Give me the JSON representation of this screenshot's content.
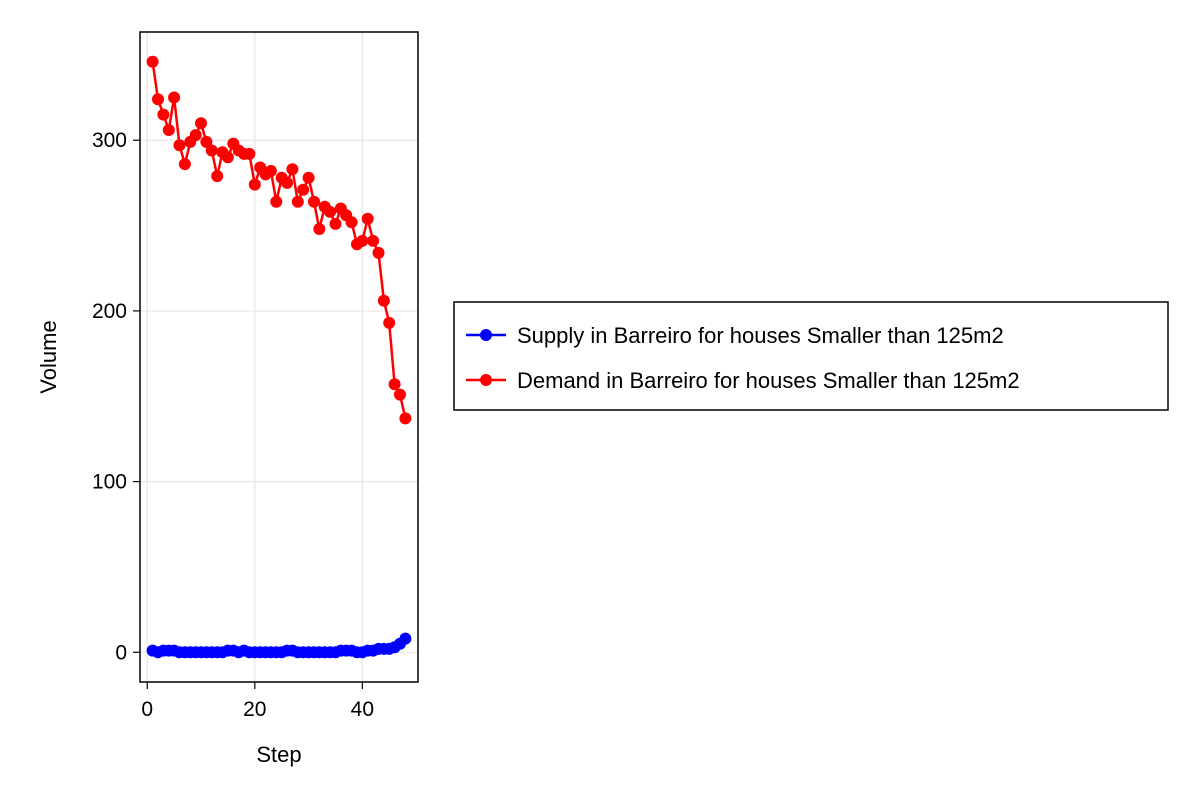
{
  "chart_data": {
    "type": "line",
    "title": "",
    "xlabel": "Step",
    "ylabel": "Volume",
    "xlim": [
      -1.35,
      50.35
    ],
    "ylim": [
      -17.4,
      363.4
    ],
    "xticks": [
      0,
      20,
      40
    ],
    "yticks": [
      0,
      100,
      200,
      300
    ],
    "xtick_labels": [
      "0",
      "20",
      "40"
    ],
    "ytick_labels": [
      "0",
      "100",
      "200",
      "300"
    ],
    "grid": true,
    "legend_position": "right",
    "series": [
      {
        "name": "Supply in Barreiro for houses Smaller than 125m2",
        "color": "#0000ff",
        "x": [
          1,
          2,
          3,
          4,
          5,
          6,
          7,
          8,
          9,
          10,
          11,
          12,
          13,
          14,
          15,
          16,
          17,
          18,
          19,
          20,
          21,
          22,
          23,
          24,
          25,
          26,
          27,
          28,
          29,
          30,
          31,
          32,
          33,
          34,
          35,
          36,
          37,
          38,
          39,
          40,
          41,
          42,
          43,
          44,
          45,
          46,
          47,
          48
        ],
        "values": [
          1,
          0,
          1,
          1,
          1,
          0,
          0,
          0,
          0,
          0,
          0,
          0,
          0,
          0,
          1,
          1,
          0,
          1,
          0,
          0,
          0,
          0,
          0,
          0,
          0,
          1,
          1,
          0,
          0,
          0,
          0,
          0,
          0,
          0,
          0,
          1,
          1,
          1,
          0,
          0,
          1,
          1,
          2,
          2,
          2,
          3,
          5,
          8
        ]
      },
      {
        "name": "Demand in Barreiro for houses Smaller than 125m2",
        "color": "#ff0000",
        "x": [
          1,
          2,
          3,
          4,
          5,
          6,
          7,
          8,
          9,
          10,
          11,
          12,
          13,
          14,
          15,
          16,
          17,
          18,
          19,
          20,
          21,
          22,
          23,
          24,
          25,
          26,
          27,
          28,
          29,
          30,
          31,
          32,
          33,
          34,
          35,
          36,
          37,
          38,
          39,
          40,
          41,
          42,
          43,
          44,
          45,
          46,
          47,
          48
        ],
        "values": [
          346,
          324,
          315,
          306,
          325,
          297,
          286,
          299,
          303,
          310,
          299,
          294,
          279,
          293,
          290,
          298,
          294,
          292,
          292,
          274,
          284,
          280,
          282,
          264,
          278,
          275,
          283,
          264,
          271,
          278,
          264,
          248,
          261,
          258,
          251,
          260,
          256,
          252,
          239,
          241,
          254,
          241,
          234,
          206,
          193,
          157,
          151,
          137
        ]
      }
    ]
  }
}
